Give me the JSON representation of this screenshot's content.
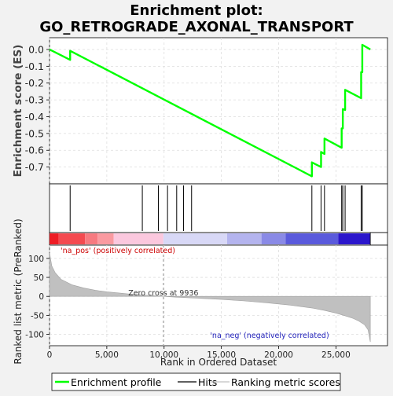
{
  "chart_data": {
    "type": "line",
    "title_line1": "Enrichment plot:",
    "title_line2": "GO_RETROGRADE_AXONAL_TRANSPORT",
    "es_panel": {
      "ylabel": "Enrichment score (ES)",
      "ylim": [
        -0.8,
        0.07
      ],
      "yticks": [
        0.0,
        -0.1,
        -0.2,
        -0.3,
        -0.4,
        -0.5,
        -0.6,
        -0.7
      ],
      "ytick_labels": [
        "0.0",
        "-0.1",
        "-0.2",
        "-0.3",
        "-0.4",
        "-0.5",
        "-0.6",
        "-0.7"
      ],
      "grid": true,
      "line_color": "#00ff00",
      "points": [
        [
          0,
          0.0
        ],
        [
          1800,
          -0.062
        ],
        [
          1800,
          -0.008
        ],
        [
          22900,
          -0.755
        ],
        [
          22900,
          -0.672
        ],
        [
          23700,
          -0.7
        ],
        [
          23700,
          -0.61
        ],
        [
          24000,
          -0.622
        ],
        [
          24000,
          -0.53
        ],
        [
          25500,
          -0.585
        ],
        [
          25500,
          -0.47
        ],
        [
          25600,
          -0.47
        ],
        [
          25600,
          -0.355
        ],
        [
          25800,
          -0.36
        ],
        [
          25800,
          -0.24
        ],
        [
          27200,
          -0.29
        ],
        [
          27200,
          -0.135
        ],
        [
          27300,
          -0.135
        ],
        [
          27300,
          0.028
        ],
        [
          28000,
          0.0
        ]
      ]
    },
    "hits": [
      1800,
      8100,
      9500,
      10300,
      11100,
      11700,
      12400,
      22900,
      23700,
      24000,
      25500,
      25600,
      25800,
      27200,
      27300
    ],
    "heatmap_bar": {
      "segments": [
        {
          "start": 0,
          "end": 800,
          "color": "#ee1c24"
        },
        {
          "start": 800,
          "end": 3100,
          "color": "#f44a50"
        },
        {
          "start": 3100,
          "end": 4200,
          "color": "#f77a80"
        },
        {
          "start": 4200,
          "end": 5600,
          "color": "#fa9aa0"
        },
        {
          "start": 5600,
          "end": 9936,
          "color": "#fbc8de"
        },
        {
          "start": 9936,
          "end": 15500,
          "color": "#d8d8f6"
        },
        {
          "start": 15500,
          "end": 18500,
          "color": "#b4b4ee"
        },
        {
          "start": 18500,
          "end": 20600,
          "color": "#8a8ae6"
        },
        {
          "start": 20600,
          "end": 25200,
          "color": "#5a5adc"
        },
        {
          "start": 25200,
          "end": 28000,
          "color": "#2b16cc"
        }
      ]
    },
    "metric_panel": {
      "ylabel": "Ranked list metric (PreRanked)",
      "ylim": [
        -130,
        135
      ],
      "yticks": [
        100,
        50,
        0,
        -50,
        -100
      ],
      "ytick_labels": [
        "100",
        "50",
        "0",
        "-50",
        "-100"
      ],
      "fill_color": "#c0c0c0",
      "zero_cross": 9936,
      "zero_cross_label": "Zero cross at 9936",
      "pos_label": "'na_pos' (positively correlated)",
      "neg_label": "'na_neg' (negatively correlated)",
      "profile": [
        [
          0,
          115
        ],
        [
          200,
          80
        ],
        [
          500,
          62
        ],
        [
          1000,
          45
        ],
        [
          2000,
          30
        ],
        [
          3000,
          22
        ],
        [
          4000,
          16
        ],
        [
          5000,
          12
        ],
        [
          6000,
          9
        ],
        [
          7000,
          6
        ],
        [
          8000,
          4
        ],
        [
          9000,
          2
        ],
        [
          9936,
          0
        ],
        [
          11000,
          -2
        ],
        [
          13000,
          -5
        ],
        [
          15000,
          -8
        ],
        [
          17000,
          -12
        ],
        [
          19000,
          -17
        ],
        [
          21000,
          -23
        ],
        [
          23000,
          -31
        ],
        [
          24000,
          -37
        ],
        [
          25000,
          -44
        ],
        [
          26000,
          -53
        ],
        [
          26500,
          -58
        ],
        [
          27000,
          -65
        ],
        [
          27500,
          -75
        ],
        [
          27800,
          -88
        ],
        [
          28000,
          -120
        ]
      ]
    },
    "xaxis": {
      "label": "Rank in Ordered Dataset",
      "xlim": [
        0,
        29500
      ],
      "ticks": [
        0,
        5000,
        10000,
        15000,
        20000,
        25000
      ],
      "tick_labels": [
        "0",
        "5,000",
        "10,000",
        "15,000",
        "20,000",
        "25,000"
      ],
      "n_genes": 28000
    },
    "legend": {
      "placement": "bottom",
      "items": [
        {
          "label": "Enrichment profile",
          "color": "#00ff00",
          "kind": "line"
        },
        {
          "label": "Hits",
          "color": "#000000",
          "kind": "line"
        },
        {
          "label": "Ranking metric scores",
          "color": "#c0c0c0",
          "kind": "line"
        }
      ]
    }
  }
}
